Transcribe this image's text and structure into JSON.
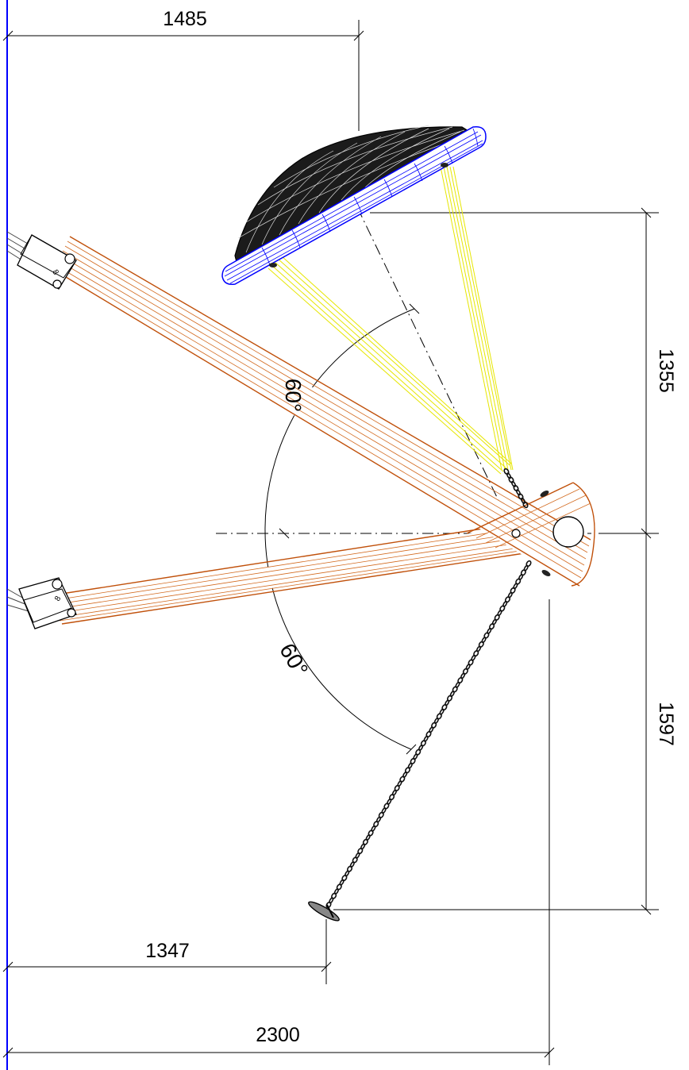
{
  "drawing": {
    "dimensions": {
      "top_width": "1485",
      "upper_height": "1355",
      "lower_height": "1597",
      "bottom_inner_width": "1347",
      "bottom_total_width": "2300"
    },
    "angles": {
      "upper": "60°",
      "lower": "60°"
    },
    "components": [
      "swing-seat-basket",
      "suspension-ropes",
      "wooden-beam-upper",
      "wooden-beam-lower",
      "chain",
      "ground-anchor",
      "pivot-ball",
      "side-boundary-line"
    ],
    "colors": {
      "wood": "#c0500a",
      "rope": "#e6e600",
      "basket_rim": "#0000ff",
      "basket_mesh": "#111111",
      "boundary": "#0000ff",
      "lines": "#000000"
    }
  }
}
